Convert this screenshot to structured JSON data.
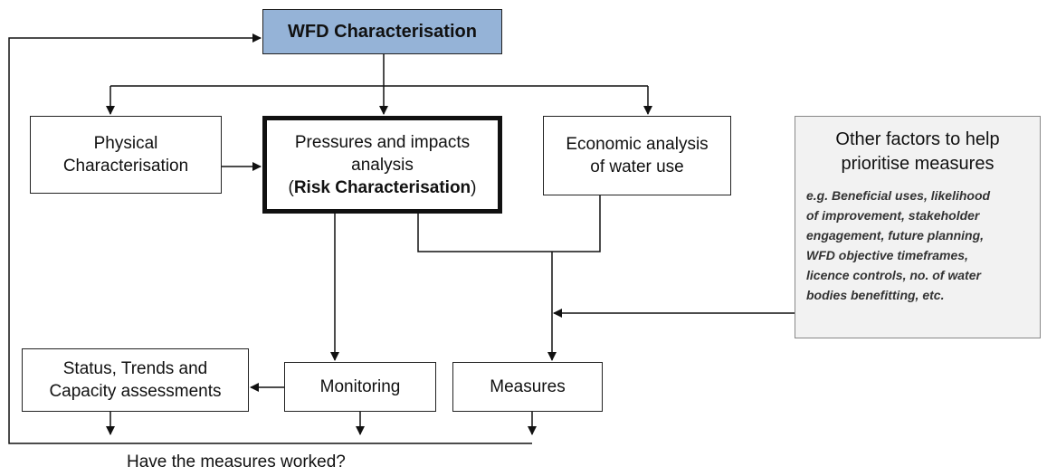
{
  "nodes": [
    {
      "id": "wfd",
      "lines": [
        "WFD Characterisation"
      ]
    },
    {
      "id": "physical",
      "lines": [
        "Physical",
        "Characterisation"
      ]
    },
    {
      "id": "pressures",
      "lines": [
        "Pressures and impacts",
        "analysis"
      ],
      "risk": [
        "(",
        "Risk Characterisation",
        ")"
      ]
    },
    {
      "id": "economic",
      "lines": [
        "Economic analysis",
        "of water use"
      ]
    },
    {
      "id": "other",
      "lines": [
        "Other factors to help",
        "prioritise measures"
      ],
      "details": [
        "e.g. Beneficial uses, likelihood",
        "of improvement, stakeholder",
        "engagement, future planning,",
        "WFD objective timeframes,",
        "licence controls, no. of water",
        "bodies benefitting, etc."
      ]
    },
    {
      "id": "status",
      "lines": [
        "Status, Trends and",
        "Capacity assessments"
      ]
    },
    {
      "id": "monitoring",
      "lines": [
        "Monitoring"
      ]
    },
    {
      "id": "measures",
      "lines": [
        "Measures"
      ]
    }
  ],
  "question": "Have the measures worked?"
}
